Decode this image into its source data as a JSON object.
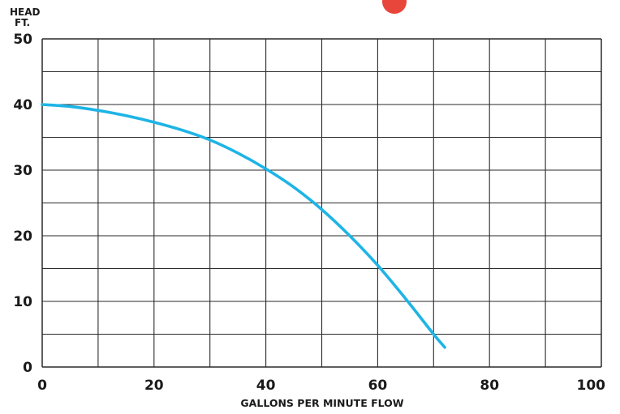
{
  "colors": {
    "curve": "#1eb4e6",
    "grid": "#2a2a2a",
    "text": "#1a1a1a",
    "marker": "#e8463a"
  },
  "chart_data": {
    "type": "line",
    "ylabel": "HEAD FT.",
    "ylabel_lines": [
      "HEAD",
      "FT."
    ],
    "xlabel": "GALLONS PER MINUTE FLOW",
    "xlim": [
      0,
      100
    ],
    "ylim": [
      0,
      50
    ],
    "xticks": [
      "0",
      "20",
      "40",
      "60",
      "80",
      "100"
    ],
    "yticks": [
      "0",
      "10",
      "20",
      "30",
      "40",
      "50"
    ],
    "grid": true,
    "series": [
      {
        "x": [
          0,
          5,
          10,
          15,
          20,
          25,
          30,
          35,
          40,
          45,
          50,
          55,
          60,
          65,
          70,
          72
        ],
        "y": [
          40,
          39.7,
          39.1,
          38.3,
          37.3,
          36.1,
          34.6,
          32.6,
          30.2,
          27.4,
          24.0,
          20.0,
          15.5,
          10.4,
          5.0,
          3.0
        ]
      }
    ]
  }
}
